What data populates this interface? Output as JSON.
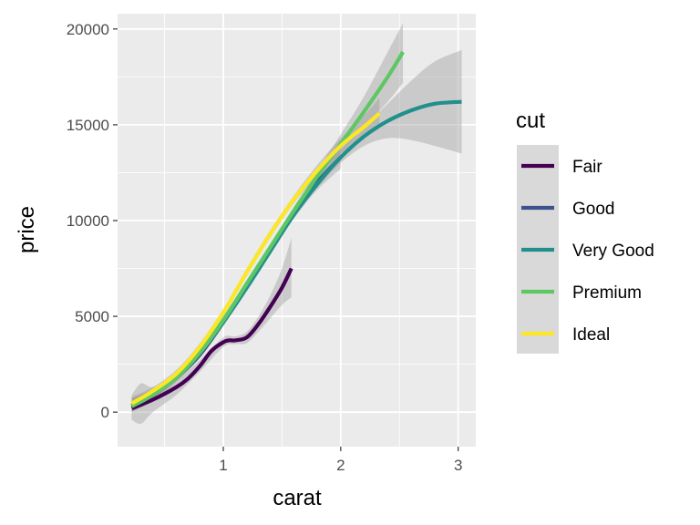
{
  "chart_data": {
    "type": "line",
    "title": "",
    "xlabel": "carat",
    "ylabel": "price",
    "xlim": [
      0.1,
      3.15
    ],
    "ylim": [
      -1800,
      20800
    ],
    "x_ticks": [
      1,
      2,
      3
    ],
    "y_ticks": [
      0,
      5000,
      10000,
      15000,
      20000
    ],
    "grid": true,
    "confidence_bands": true,
    "legend": {
      "title": "cut",
      "position": "right"
    },
    "series": [
      {
        "name": "Fair",
        "color": "#440154",
        "points": [
          [
            0.22,
            200
          ],
          [
            0.4,
            650
          ],
          [
            0.6,
            1300
          ],
          [
            0.7,
            1750
          ],
          [
            0.8,
            2400
          ],
          [
            0.9,
            3200
          ],
          [
            1.0,
            3650
          ],
          [
            1.05,
            3750
          ],
          [
            1.1,
            3750
          ],
          [
            1.2,
            3900
          ],
          [
            1.3,
            4600
          ],
          [
            1.4,
            5500
          ],
          [
            1.5,
            6500
          ],
          [
            1.58,
            7500
          ]
        ],
        "band": [
          [
            0.22,
            -400,
            900
          ],
          [
            0.3,
            -600,
            1500
          ],
          [
            0.4,
            0,
            1300
          ],
          [
            0.6,
            900,
            1700
          ],
          [
            0.8,
            2100,
            2700
          ],
          [
            1.0,
            3400,
            3900
          ],
          [
            1.1,
            3550,
            3950
          ],
          [
            1.2,
            3600,
            4200
          ],
          [
            1.3,
            4200,
            5000
          ],
          [
            1.4,
            4900,
            6100
          ],
          [
            1.5,
            5600,
            7500
          ],
          [
            1.58,
            6000,
            9100
          ]
        ]
      },
      {
        "name": "Good",
        "color": "#3b528b",
        "points": [
          [
            0.22,
            300
          ],
          [
            0.4,
            900
          ],
          [
            0.6,
            1800
          ],
          [
            0.8,
            3000
          ],
          [
            1.0,
            4700
          ],
          [
            1.2,
            6600
          ],
          [
            1.4,
            8500
          ],
          [
            1.6,
            10400
          ],
          [
            1.8,
            12000
          ],
          [
            2.0,
            13300
          ]
        ],
        "band": [
          [
            0.22,
            0,
            700
          ],
          [
            0.4,
            600,
            1200
          ],
          [
            0.6,
            1600,
            2000
          ],
          [
            0.8,
            2800,
            3200
          ],
          [
            1.0,
            4500,
            4900
          ],
          [
            1.2,
            6400,
            6800
          ],
          [
            1.4,
            8300,
            8700
          ],
          [
            1.6,
            10100,
            10700
          ],
          [
            1.8,
            11600,
            12400
          ],
          [
            2.0,
            12700,
            13900
          ]
        ]
      },
      {
        "name": "Very Good",
        "color": "#21908c",
        "points": [
          [
            0.22,
            350
          ],
          [
            0.4,
            950
          ],
          [
            0.6,
            1900
          ],
          [
            0.8,
            3100
          ],
          [
            1.0,
            4700
          ],
          [
            1.2,
            6500
          ],
          [
            1.4,
            8400
          ],
          [
            1.6,
            10300
          ],
          [
            1.8,
            11900
          ],
          [
            2.0,
            13300
          ],
          [
            2.2,
            14400
          ],
          [
            2.4,
            15200
          ],
          [
            2.6,
            15750
          ],
          [
            2.8,
            16100
          ],
          [
            3.03,
            16200
          ]
        ],
        "band": [
          [
            0.22,
            0,
            700
          ],
          [
            0.4,
            700,
            1200
          ],
          [
            0.6,
            1700,
            2100
          ],
          [
            0.8,
            2900,
            3300
          ],
          [
            1.0,
            4500,
            4900
          ],
          [
            1.2,
            6300,
            6700
          ],
          [
            1.4,
            8200,
            8600
          ],
          [
            1.6,
            10100,
            10500
          ],
          [
            1.8,
            11700,
            12100
          ],
          [
            2.0,
            13000,
            13600
          ],
          [
            2.2,
            13900,
            14900
          ],
          [
            2.4,
            14300,
            16100
          ],
          [
            2.6,
            14200,
            17300
          ],
          [
            2.8,
            13900,
            18300
          ],
          [
            3.03,
            13500,
            18900
          ]
        ]
      },
      {
        "name": "Premium",
        "color": "#5dc863",
        "points": [
          [
            0.22,
            300
          ],
          [
            0.4,
            900
          ],
          [
            0.6,
            1800
          ],
          [
            0.8,
            3100
          ],
          [
            1.0,
            4800
          ],
          [
            1.2,
            6700
          ],
          [
            1.4,
            8600
          ],
          [
            1.6,
            10500
          ],
          [
            1.8,
            12300
          ],
          [
            2.0,
            14000
          ],
          [
            2.2,
            15700
          ],
          [
            2.4,
            17500
          ],
          [
            2.53,
            18800
          ]
        ],
        "band": [
          [
            0.22,
            0,
            700
          ],
          [
            0.4,
            600,
            1200
          ],
          [
            0.6,
            1600,
            2000
          ],
          [
            0.8,
            2900,
            3300
          ],
          [
            1.0,
            4600,
            5000
          ],
          [
            1.2,
            6500,
            6900
          ],
          [
            1.4,
            8400,
            8800
          ],
          [
            1.6,
            10300,
            10700
          ],
          [
            1.8,
            12000,
            12600
          ],
          [
            2.0,
            13500,
            14500
          ],
          [
            2.2,
            14900,
            16500
          ],
          [
            2.4,
            16200,
            18800
          ],
          [
            2.53,
            17200,
            20300
          ]
        ]
      },
      {
        "name": "Ideal",
        "color": "#fde725",
        "points": [
          [
            0.22,
            450
          ],
          [
            0.4,
            1100
          ],
          [
            0.6,
            2000
          ],
          [
            0.8,
            3400
          ],
          [
            1.0,
            5200
          ],
          [
            1.2,
            7300
          ],
          [
            1.4,
            9300
          ],
          [
            1.6,
            11100
          ],
          [
            1.8,
            12600
          ],
          [
            2.0,
            13900
          ],
          [
            2.2,
            14900
          ],
          [
            2.33,
            15600
          ]
        ],
        "band": [
          [
            0.22,
            200,
            800
          ],
          [
            0.4,
            900,
            1300
          ],
          [
            0.6,
            1800,
            2200
          ],
          [
            0.8,
            3200,
            3600
          ],
          [
            1.0,
            5000,
            5400
          ],
          [
            1.2,
            7100,
            7500
          ],
          [
            1.4,
            9100,
            9500
          ],
          [
            1.6,
            10900,
            11300
          ],
          [
            1.8,
            12300,
            12900
          ],
          [
            2.0,
            13500,
            14300
          ],
          [
            2.2,
            14300,
            15500
          ],
          [
            2.33,
            14800,
            16400
          ]
        ]
      }
    ]
  }
}
